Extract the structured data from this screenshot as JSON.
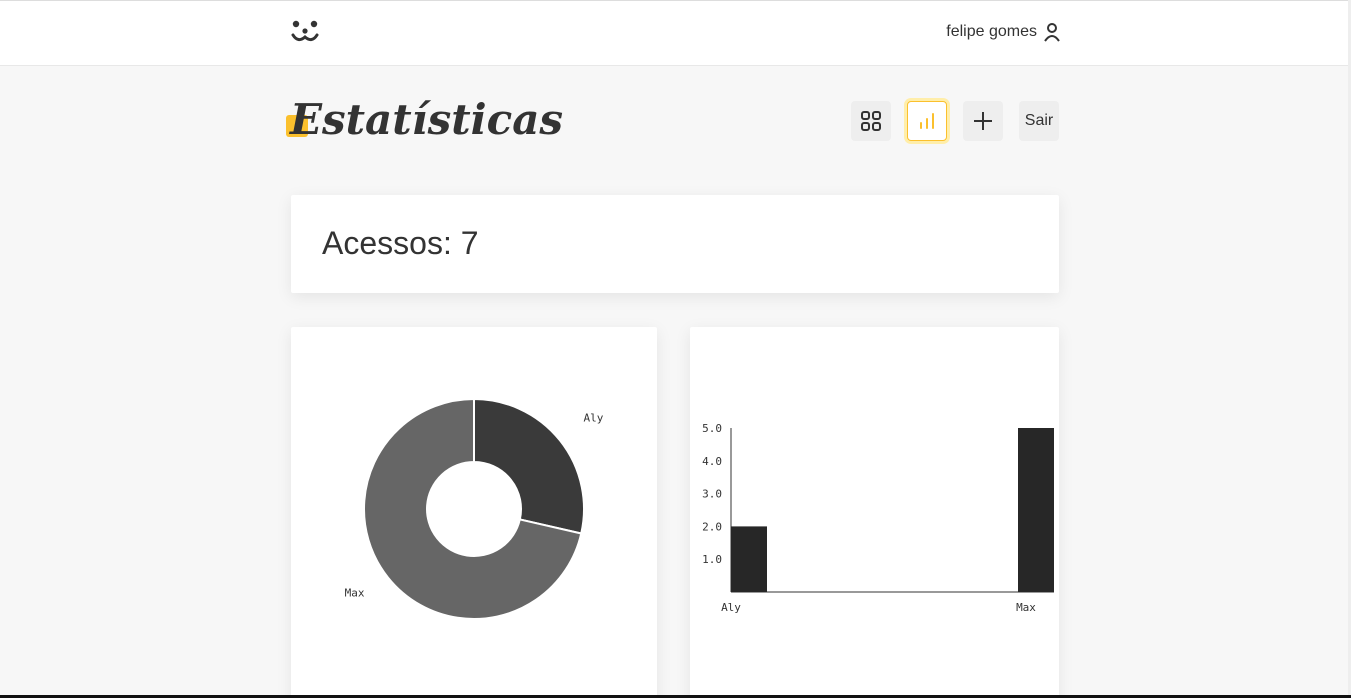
{
  "header": {
    "logo_icon": "dog-face-icon",
    "user_name": "felipe gomes",
    "user_icon": "user-icon"
  },
  "page": {
    "title": "Estatísticas"
  },
  "nav": {
    "feed_icon": "grid-icon",
    "stats_icon": "bar-chart-icon",
    "add_icon": "plus-icon",
    "logout_label": "Sair",
    "accent_color": "#fbc02d"
  },
  "access": {
    "label": "Acessos: 7"
  },
  "chart_data": [
    {
      "type": "pie",
      "title": "",
      "categories": [
        "Aly",
        "Max"
      ],
      "values": [
        2,
        5
      ],
      "colors": [
        "#3a3a3a",
        "#666666"
      ],
      "donut": true
    },
    {
      "type": "bar",
      "title": "",
      "categories": [
        "Aly",
        "Max"
      ],
      "values": [
        2,
        5
      ],
      "ylim": [
        0,
        5
      ],
      "yticks": [
        "1.0",
        "2.0",
        "3.0",
        "4.0",
        "5.0"
      ],
      "color": "#272727",
      "xlabel": "",
      "ylabel": ""
    }
  ]
}
